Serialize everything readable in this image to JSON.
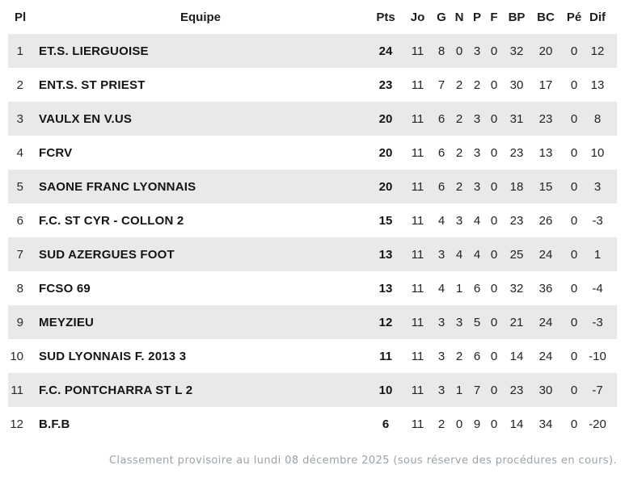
{
  "header": {
    "columns": [
      {
        "key": "pl",
        "label": "Pl"
      },
      {
        "key": "team",
        "label": "Equipe"
      },
      {
        "key": "pts",
        "label": "Pts"
      },
      {
        "key": "jo",
        "label": "Jo"
      },
      {
        "key": "g",
        "label": "G"
      },
      {
        "key": "n",
        "label": "N"
      },
      {
        "key": "p",
        "label": "P"
      },
      {
        "key": "f",
        "label": "F"
      },
      {
        "key": "bp",
        "label": "BP"
      },
      {
        "key": "bc",
        "label": "BC"
      },
      {
        "key": "pe",
        "label": "Pé"
      },
      {
        "key": "dif",
        "label": "Dif"
      }
    ]
  },
  "standings": {
    "rows": [
      {
        "pl": "1",
        "team": "ET.S. LIERGUOISE",
        "pts": "24",
        "jo": "11",
        "g": "8",
        "n": "0",
        "p": "3",
        "f": "0",
        "bp": "32",
        "bc": "20",
        "pe": "0",
        "dif": "12"
      },
      {
        "pl": "2",
        "team": "ENT.S. ST PRIEST",
        "pts": "23",
        "jo": "11",
        "g": "7",
        "n": "2",
        "p": "2",
        "f": "0",
        "bp": "30",
        "bc": "17",
        "pe": "0",
        "dif": "13"
      },
      {
        "pl": "3",
        "team": "VAULX EN V.US",
        "pts": "20",
        "jo": "11",
        "g": "6",
        "n": "2",
        "p": "3",
        "f": "0",
        "bp": "31",
        "bc": "23",
        "pe": "0",
        "dif": "8"
      },
      {
        "pl": "4",
        "team": "FCRV",
        "pts": "20",
        "jo": "11",
        "g": "6",
        "n": "2",
        "p": "3",
        "f": "0",
        "bp": "23",
        "bc": "13",
        "pe": "0",
        "dif": "10"
      },
      {
        "pl": "5",
        "team": "SAONE FRANC LYONNAIS",
        "pts": "20",
        "jo": "11",
        "g": "6",
        "n": "2",
        "p": "3",
        "f": "0",
        "bp": "18",
        "bc": "15",
        "pe": "0",
        "dif": "3"
      },
      {
        "pl": "6",
        "team": "F.C. ST CYR - COLLON 2",
        "pts": "15",
        "jo": "11",
        "g": "4",
        "n": "3",
        "p": "4",
        "f": "0",
        "bp": "23",
        "bc": "26",
        "pe": "0",
        "dif": "-3"
      },
      {
        "pl": "7",
        "team": "SUD AZERGUES FOOT",
        "pts": "13",
        "jo": "11",
        "g": "3",
        "n": "4",
        "p": "4",
        "f": "0",
        "bp": "25",
        "bc": "24",
        "pe": "0",
        "dif": "1"
      },
      {
        "pl": "8",
        "team": "FCSO 69",
        "pts": "13",
        "jo": "11",
        "g": "4",
        "n": "1",
        "p": "6",
        "f": "0",
        "bp": "32",
        "bc": "36",
        "pe": "0",
        "dif": "-4"
      },
      {
        "pl": "9",
        "team": "MEYZIEU",
        "pts": "12",
        "jo": "11",
        "g": "3",
        "n": "3",
        "p": "5",
        "f": "0",
        "bp": "21",
        "bc": "24",
        "pe": "0",
        "dif": "-3"
      },
      {
        "pl": "10",
        "team": "SUD LYONNAIS F. 2013 3",
        "pts": "11",
        "jo": "11",
        "g": "3",
        "n": "2",
        "p": "6",
        "f": "0",
        "bp": "14",
        "bc": "24",
        "pe": "0",
        "dif": "-10"
      },
      {
        "pl": "11",
        "team": "F.C. PONTCHARRA ST L 2",
        "pts": "10",
        "jo": "11",
        "g": "3",
        "n": "1",
        "p": "7",
        "f": "0",
        "bp": "23",
        "bc": "30",
        "pe": "0",
        "dif": "-7"
      },
      {
        "pl": "12",
        "team": "B.F.B",
        "pts": "6",
        "jo": "11",
        "g": "2",
        "n": "0",
        "p": "9",
        "f": "0",
        "bp": "14",
        "bc": "34",
        "pe": "0",
        "dif": "-20"
      }
    ]
  },
  "footer": {
    "note": "Classement provisoire au lundi 08 décembre 2025 (sous réserve des procédures en cours)."
  },
  "colors": {
    "row_stripe": "#e9e9e9",
    "header_text": "#1d1d1d",
    "body_text": "#232323",
    "footer_text": "#9aa3a9"
  }
}
